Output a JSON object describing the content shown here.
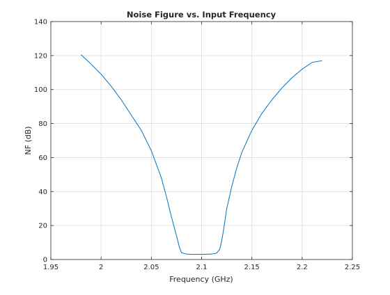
{
  "chart_data": {
    "type": "line",
    "title": "Noise Figure vs. Input Frequency",
    "xlabel": "Frequency (GHz)",
    "ylabel": "NF (dB)",
    "xlim": [
      1.95,
      2.25
    ],
    "ylim": [
      0,
      140
    ],
    "xticks": [
      1.95,
      2.0,
      2.05,
      2.1,
      2.15,
      2.2,
      2.25
    ],
    "xtick_labels": [
      "1.95",
      "2",
      "2.05",
      "2.1",
      "2.15",
      "2.2",
      "2.25"
    ],
    "yticks": [
      0,
      20,
      40,
      60,
      80,
      100,
      120,
      140
    ],
    "ytick_labels": [
      "0",
      "20",
      "40",
      "60",
      "80",
      "100",
      "120",
      "140"
    ],
    "grid": true,
    "series": [
      {
        "color": "#0072bd",
        "x": [
          1.98,
          1.99,
          2.0,
          2.01,
          2.02,
          2.03,
          2.04,
          2.05,
          2.06,
          2.065,
          2.07,
          2.075,
          2.078,
          2.08,
          2.085,
          2.09,
          2.1,
          2.11,
          2.115,
          2.118,
          2.12,
          2.122,
          2.125,
          2.13,
          2.135,
          2.14,
          2.15,
          2.16,
          2.17,
          2.18,
          2.19,
          2.2,
          2.21,
          2.22
        ],
        "y": [
          120.5,
          115,
          109,
          102,
          94,
          85,
          76,
          64,
          48,
          37,
          25,
          14,
          7,
          4,
          3.2,
          3,
          3,
          3.2,
          3.8,
          6,
          11,
          18,
          30,
          43,
          54,
          63,
          76,
          86,
          94,
          101,
          107,
          112,
          116,
          117
        ]
      }
    ]
  }
}
